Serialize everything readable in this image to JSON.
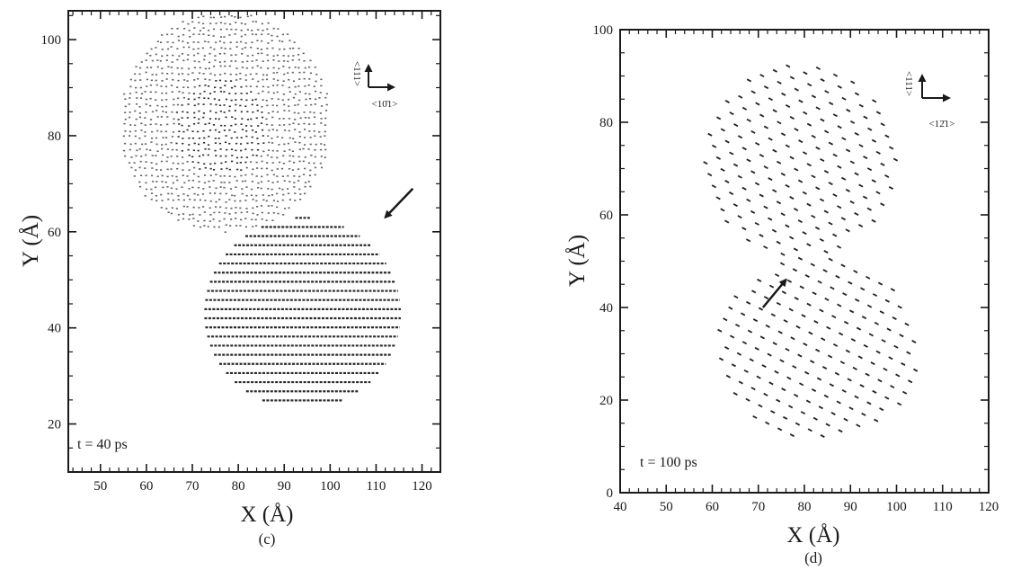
{
  "chart_data": [
    {
      "type": "scatter",
      "panel_label": "(c)",
      "time_label": "t = 40 ps",
      "xlabel": "X (Å)",
      "ylabel": "Y (Å)",
      "xlim": [
        43,
        124
      ],
      "ylim": [
        10,
        106
      ],
      "xticks": [
        50,
        60,
        70,
        80,
        90,
        100,
        110,
        120
      ],
      "yticks": [
        20,
        40,
        60,
        80,
        100
      ],
      "orientation": {
        "vertical": "<111>",
        "horizontal": "<10̄1>"
      },
      "regions": [
        {
          "name": "upper grain",
          "shape": "circle",
          "center": [
            77,
            83
          ],
          "radius": 23,
          "spacing": 1.15
        },
        {
          "name": "lower grain",
          "shape": "ellipse",
          "center": [
            94,
            43
          ],
          "radii": [
            22,
            20
          ],
          "row_spacing": 1.9
        }
      ],
      "arrow": {
        "from": [
          118,
          69
        ],
        "to": [
          112,
          63
        ]
      }
    },
    {
      "type": "scatter",
      "panel_label": "(d)",
      "time_label": "t = 100 ps",
      "xlabel": "X (Å)",
      "ylabel": "Y (Å)",
      "xlim": [
        40,
        120
      ],
      "ylim": [
        0,
        100
      ],
      "xticks": [
        40,
        50,
        60,
        70,
        80,
        90,
        100,
        110,
        120
      ],
      "yticks": [
        0,
        20,
        40,
        60,
        80,
        100
      ],
      "orientation": {
        "vertical": "<111>",
        "horizontal": "<12̄1>"
      },
      "regions": [
        {
          "name": "upper grain",
          "shape": "ellipse",
          "center": [
            79,
            72
          ],
          "radii": [
            21,
            21
          ],
          "spacing": 3.0
        },
        {
          "name": "lower grain",
          "shape": "ellipse",
          "center": [
            83,
            31
          ],
          "radii": [
            22,
            20
          ],
          "spacing": 3.0
        }
      ],
      "arrow": {
        "from": [
          71,
          40
        ],
        "to": [
          76,
          46
        ]
      }
    }
  ]
}
